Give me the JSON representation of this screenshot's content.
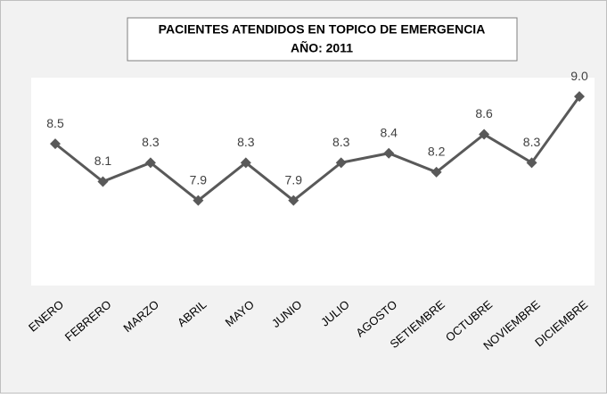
{
  "chart_data": {
    "type": "line",
    "title": "PACIENTES ATENDIDOS EN TOPICO DE EMERGENCIA",
    "subtitle": "AÑO: 2011",
    "categories": [
      "ENERO",
      "FEBRERO",
      "MARZO",
      "ABRIL",
      "MAYO",
      "JUNIO",
      "JULIO",
      "AGOSTO",
      "SETIEMBRE",
      "OCTUBRE",
      "NOVIEMBRE",
      "DICIEMBRE"
    ],
    "values": [
      8.5,
      8.1,
      8.3,
      7.9,
      8.3,
      7.9,
      8.3,
      8.4,
      8.2,
      8.6,
      8.3,
      9.0
    ],
    "value_labels": [
      "8.5",
      "8.1",
      "8.3",
      "7.9",
      "8.3",
      "7.9",
      "8.3",
      "8.4",
      "8.2",
      "8.6",
      "8.3",
      "9.0"
    ],
    "color": "#595959",
    "ylim": [
      7,
      9.2
    ]
  }
}
